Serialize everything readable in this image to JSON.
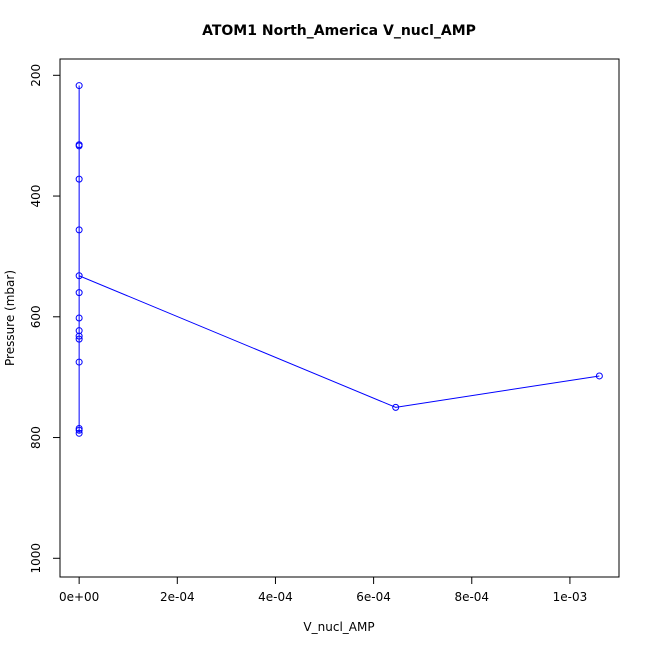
{
  "chart_data": {
    "type": "line",
    "title": "ATOM1 North_America V_nucl_AMP",
    "xlabel": "V_nucl_AMP",
    "ylabel": "Pressure (mbar)",
    "color": "#0000ff",
    "x": [
      0,
      0,
      0,
      0,
      0,
      0,
      0,
      0,
      0,
      0,
      0,
      0,
      0,
      0,
      0,
      0.000645,
      0.00106
    ],
    "y": [
      217,
      315,
      317,
      372,
      456,
      560,
      602,
      623,
      632,
      637,
      675,
      785,
      788,
      793,
      532,
      750,
      698
    ],
    "xlim": [
      -3.9e-05,
      0.0011
    ],
    "ylim": [
      1031,
      173
    ],
    "xticks": [
      {
        "value": 0,
        "label": "0e+00"
      },
      {
        "value": 0.0002,
        "label": "2e-04"
      },
      {
        "value": 0.0004,
        "label": "4e-04"
      },
      {
        "value": 0.0006,
        "label": "6e-04"
      },
      {
        "value": 0.0008,
        "label": "8e-04"
      },
      {
        "value": 0.001,
        "label": "1e-03"
      }
    ],
    "yticks": [
      200,
      400,
      600,
      800,
      1000
    ]
  }
}
